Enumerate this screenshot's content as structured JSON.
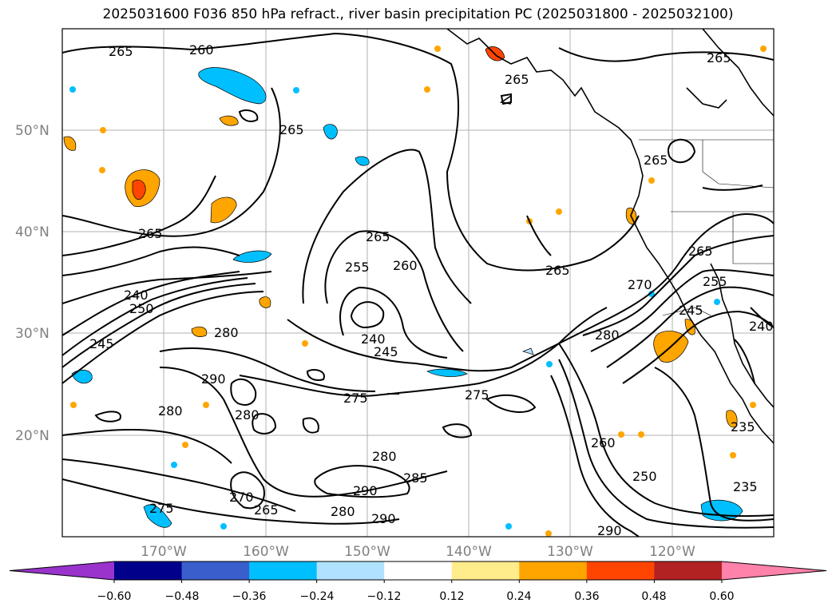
{
  "title": "2025031600 F036 850 hPa refract., river basin precipitation PC (2025031800 - 2025032100)",
  "map": {
    "lat_labels": [
      "50°N",
      "40°N",
      "30°N",
      "20°N"
    ],
    "lon_labels": [
      "170°W",
      "160°W",
      "150°W",
      "140°W",
      "130°W",
      "120°W"
    ],
    "contour_labels": [
      "265",
      "260",
      "265",
      "265",
      "265",
      "265",
      "265",
      "265",
      "265",
      "255",
      "260",
      "240",
      "245",
      "250",
      "240",
      "245",
      "275",
      "275",
      "280",
      "280",
      "290",
      "280",
      "280",
      "285",
      "290",
      "280",
      "290",
      "275",
      "270",
      "265",
      "260",
      "250",
      "290",
      "235",
      "235",
      "245",
      "255",
      "265",
      "270",
      "280",
      "240"
    ]
  },
  "colorbar": {
    "ticks": [
      "−0.60",
      "−0.48",
      "−0.36",
      "−0.24",
      "−0.12",
      "0.12",
      "0.24",
      "0.36",
      "0.48",
      "0.60"
    ],
    "colors": [
      "#9933cc",
      "#00008b",
      "#3a5fcd",
      "#00bfff",
      "#b0e2ff",
      "#ffffff",
      "#ffec8b",
      "#ffa500",
      "#ff4500",
      "#b22222",
      "#ff82ab"
    ]
  }
}
